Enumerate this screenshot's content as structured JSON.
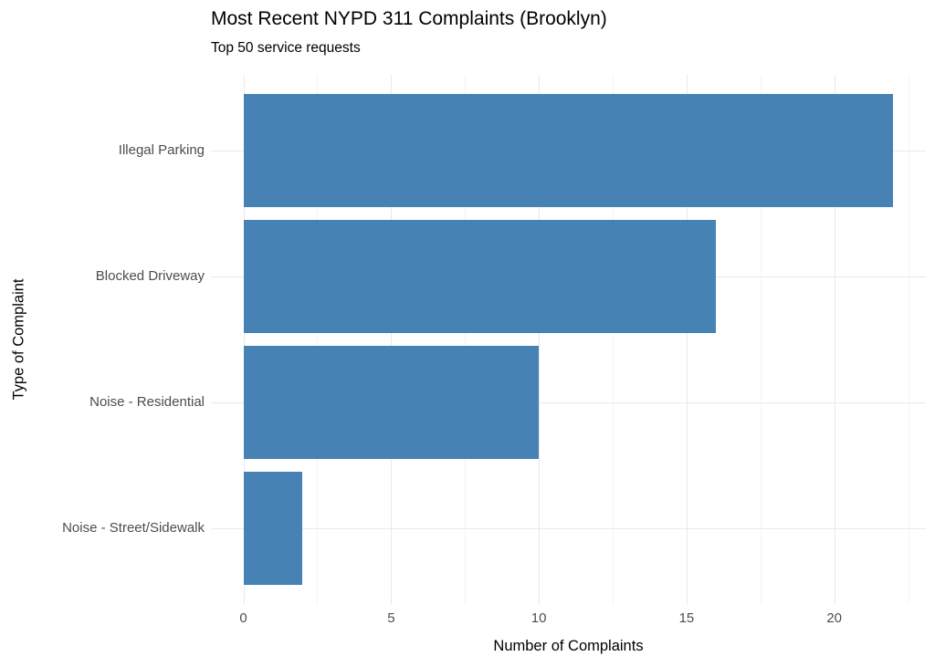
{
  "chart_data": {
    "type": "bar",
    "orientation": "horizontal",
    "title": "Most Recent NYPD 311 Complaints (Brooklyn)",
    "subtitle": "Top 50 service requests",
    "xlabel": "Number of Complaints",
    "ylabel": "Type of Complaint",
    "categories": [
      "Illegal Parking",
      "Blocked Driveway",
      "Noise - Residential",
      "Noise - Street/Sidewalk"
    ],
    "values": [
      22,
      16,
      10,
      2
    ],
    "x_ticks": [
      0,
      5,
      10,
      15,
      20
    ],
    "x_minor_ticks": [
      2.5,
      7.5,
      12.5,
      17.5,
      22.5
    ],
    "xlim": [
      -1.1,
      23.1
    ],
    "bar_rel_width": 0.9,
    "grid": true,
    "legend": "none",
    "colors": {
      "bar": "#4682B4",
      "grid_major": "#e9e9e9",
      "grid_minor": "#f4f4f4",
      "axis_text": "#4d4d4d",
      "text": "#000000",
      "background": "#ffffff"
    }
  }
}
